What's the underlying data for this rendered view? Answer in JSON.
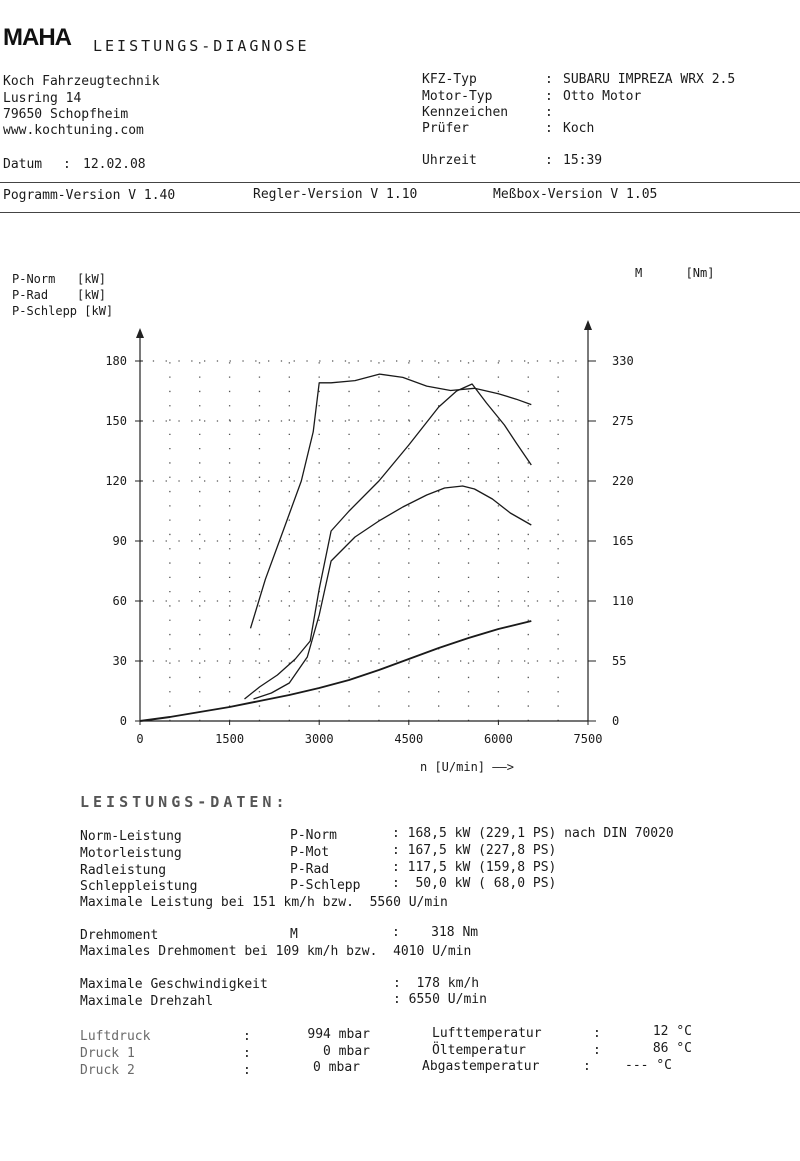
{
  "header": {
    "logo": "MAHA",
    "title": "LEISTUNGS-DIAGNOSE",
    "company": [
      "Koch Fahrzeugtechnik",
      "Lusring 14",
      "79650 Schopfheim",
      "www.kochtuning.com"
    ],
    "datum_label": "Datum",
    "datum_value": "12.02.08",
    "kfz_typ_label": "KFZ-Typ",
    "kfz_typ_value": "SUBARU IMPREZA WRX 2.5",
    "motor_typ_label": "Motor-Typ",
    "motor_typ_value": "Otto Motor",
    "kennzeichen_label": "Kennzeichen",
    "kennzeichen_value": "",
    "pruefer_label": "Prüfer",
    "pruefer_value": "Koch",
    "uhrzeit_label": "Uhrzeit",
    "uhrzeit_value": "15:39",
    "programm_version": "Pogramm-Version V 1.40",
    "regler_version": "Regler-Version V 1.10",
    "messbox_version": "Meßbox-Version V 1.05"
  },
  "chart_data": {
    "type": "line",
    "left_axis_labels": [
      "P-Norm   [kW]",
      "P-Rad    [kW]",
      "P-Schlepp [kW]"
    ],
    "right_axis_label": "M      [Nm]",
    "xlabel": "n [U/min] ——>",
    "x_ticks": [
      0,
      1500,
      3000,
      4500,
      6000,
      7500
    ],
    "y_left_ticks": [
      0,
      30,
      60,
      90,
      120,
      150,
      180
    ],
    "y_right_ticks": [
      0,
      55,
      110,
      165,
      220,
      275,
      330
    ],
    "xlim": [
      0,
      7500
    ],
    "ylim_left": [
      0,
      180
    ],
    "ylim_right": [
      0,
      330
    ],
    "grid": "dotted",
    "series": [
      {
        "name": "M",
        "axis": "right",
        "x": [
          1850,
          2100,
          2400,
          2700,
          2900,
          3000,
          3200,
          3600,
          4010,
          4400,
          4800,
          5200,
          5600,
          6000,
          6300,
          6550
        ],
        "y": [
          85,
          130,
          175,
          220,
          265,
          310,
          310,
          312,
          318,
          315,
          307,
          303,
          305,
          300,
          295,
          290
        ]
      },
      {
        "name": "P-Norm",
        "axis": "left",
        "x": [
          1750,
          2000,
          2300,
          2600,
          2850,
          3000,
          3200,
          3500,
          4000,
          4500,
          5000,
          5300,
          5560,
          5800,
          6100,
          6300,
          6550
        ],
        "y": [
          11,
          17,
          23,
          31,
          40,
          66,
          95,
          105,
          120,
          138,
          157,
          165,
          168.5,
          159,
          148,
          139,
          128
        ]
      },
      {
        "name": "P-Rad",
        "axis": "left",
        "x": [
          1900,
          2200,
          2500,
          2800,
          3000,
          3200,
          3600,
          4000,
          4400,
          4800,
          5100,
          5400,
          5600,
          5900,
          6200,
          6550
        ],
        "y": [
          11,
          14,
          19,
          32,
          53,
          80,
          92,
          100,
          107,
          113,
          116.5,
          117.5,
          116,
          111,
          104,
          98
        ]
      },
      {
        "name": "P-Schlepp",
        "axis": "left",
        "x": [
          0,
          500,
          1000,
          1500,
          2000,
          2500,
          3000,
          3500,
          4000,
          4500,
          5000,
          5500,
          6000,
          6550
        ],
        "y": [
          0,
          2,
          4.5,
          7,
          10,
          13,
          16.5,
          20.5,
          25.5,
          31,
          36.5,
          41.5,
          46,
          50
        ]
      }
    ]
  },
  "daten": {
    "title": "LEISTUNGS-DATEN:",
    "rows": [
      {
        "label": "Norm-Leistung",
        "code": "P-Norm",
        "value": ": 168,5 kW (229,1 PS) nach DIN 70020"
      },
      {
        "label": "Motorleistung",
        "code": "P-Mot",
        "value": ": 167,5 kW (227,8 PS)"
      },
      {
        "label": "Radleistung",
        "code": "P-Rad",
        "value": ": 117,5 kW (159,8 PS)"
      },
      {
        "label": "Schleppleistung",
        "code": "P-Schlepp",
        "value": ":  50,0 kW ( 68,0 PS)"
      }
    ],
    "max_leistung": "Maximale Leistung bei 151 km/h bzw.  5560 U/min",
    "drehmoment_label": "Drehmoment",
    "drehmoment_code": "M",
    "drehmoment_value": ":    318 Nm",
    "max_drehmoment": "Maximales Drehmoment bei 109 km/h bzw.  4010 U/min",
    "max_geschw_label": "Maximale Geschwindigkeit",
    "max_geschw_value": ":  178 km/h",
    "max_drehzahl_label": "Maximale Drehzahl",
    "max_drehzahl_value": ": 6550 U/min",
    "luftdruck_label": "Luftdruck",
    "luftdruck_value": "994 mbar",
    "druck1_label": "Druck 1",
    "druck1_value": "0 mbar",
    "druck2_label": "Druck 2",
    "druck2_value": "0 mbar",
    "lufttemp_label": "Lufttemperatur",
    "lufttemp_value": "12 °C",
    "oeltemp_label": "Öltemperatur",
    "oeltemp_value": "86 °C",
    "abgastemp_label": "Abgastemperatur",
    "abgastemp_value": "--- °C"
  }
}
